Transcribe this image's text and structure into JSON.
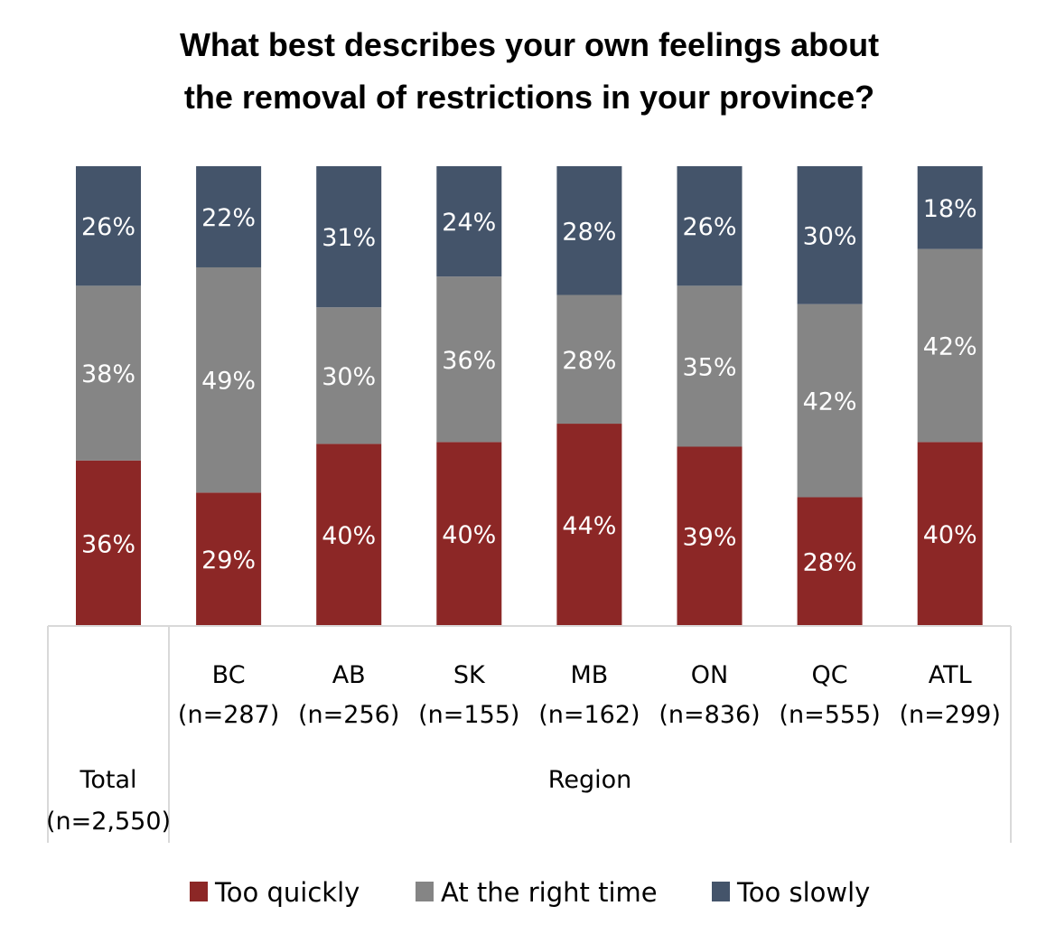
{
  "chart_data": {
    "type": "bar",
    "stacked": true,
    "stacking": "100%",
    "title_lines": [
      "What best describes your own feelings about",
      "the removal of restrictions in your province?"
    ],
    "categories": [
      {
        "line1": "",
        "line2": "Total",
        "line3": "(n=2,550)"
      },
      {
        "line1": "BC",
        "line2": "(n=287)",
        "line3": ""
      },
      {
        "line1": "AB",
        "line2": "(n=256)",
        "line3": ""
      },
      {
        "line1": "SK",
        "line2": "(n=155)",
        "line3": ""
      },
      {
        "line1": "MB",
        "line2": "(n=162)",
        "line3": ""
      },
      {
        "line1": "ON",
        "line2": "(n=836)",
        "line3": ""
      },
      {
        "line1": "QC",
        "line2": "(n=555)",
        "line3": ""
      },
      {
        "line1": "ATL",
        "line2": "(n=299)",
        "line3": ""
      }
    ],
    "group_label": "Region",
    "series": [
      {
        "name": "Too quickly",
        "color": "#8c2726",
        "values": [
          36,
          29,
          40,
          40,
          44,
          39,
          28,
          40
        ]
      },
      {
        "name": "At the right time",
        "color": "#858585",
        "values": [
          38,
          49,
          30,
          36,
          28,
          35,
          42,
          42
        ]
      },
      {
        "name": "Too slowly",
        "color": "#44546a",
        "values": [
          26,
          22,
          31,
          24,
          28,
          26,
          30,
          18
        ]
      }
    ],
    "value_suffix": "%",
    "ylim": [
      0,
      100
    ],
    "grid": false,
    "legend_position": "bottom"
  }
}
